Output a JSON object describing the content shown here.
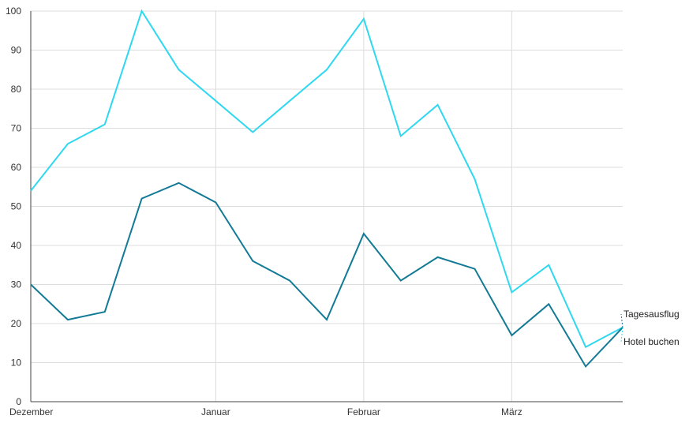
{
  "chart_data": {
    "type": "line",
    "title": "",
    "xlabel": "",
    "ylabel": "",
    "ylim": [
      0,
      100
    ],
    "yticks": [
      0,
      10,
      20,
      30,
      40,
      50,
      60,
      70,
      80,
      90,
      100
    ],
    "x_tick_labels": [
      "Dezember",
      "Januar",
      "Februar",
      "März"
    ],
    "grid": true,
    "legend_position": "right, at line ends",
    "series": [
      {
        "name": "Hotel buchen",
        "color": "#2ed8f0",
        "values": [
          54,
          66,
          71,
          100,
          85,
          77,
          69,
          77,
          85,
          98,
          68,
          76,
          57,
          28,
          35,
          14,
          19
        ]
      },
      {
        "name": "Tagesausflug",
        "color": "#137a96",
        "values": [
          30,
          21,
          23,
          52,
          56,
          51,
          36,
          31,
          21,
          43,
          31,
          37,
          34,
          17,
          25,
          9,
          19
        ]
      }
    ]
  }
}
